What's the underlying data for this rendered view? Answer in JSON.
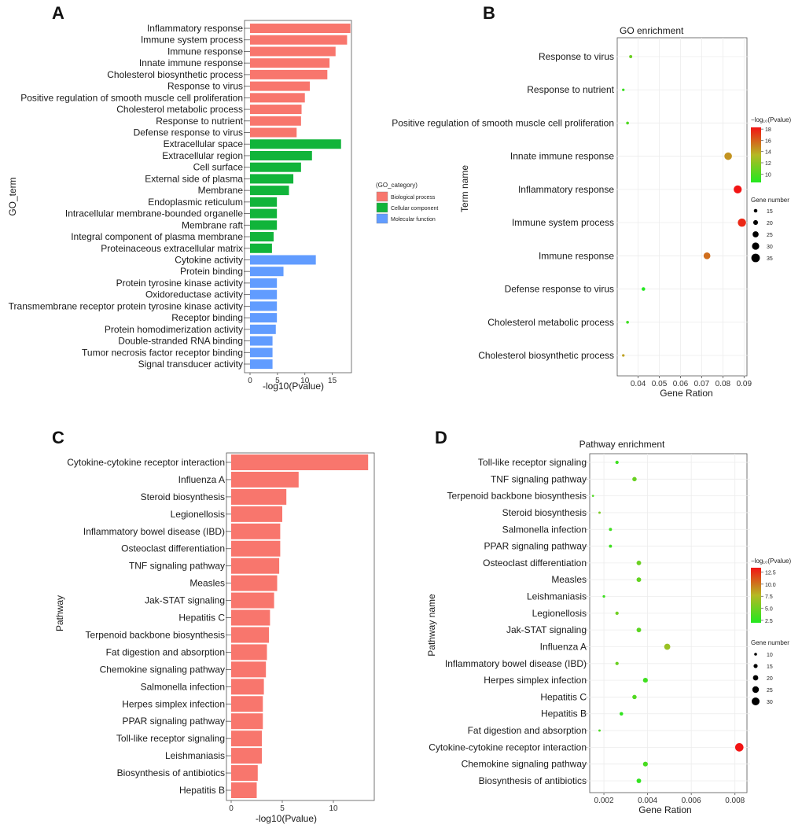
{
  "chart_data": [
    {
      "panel": "A",
      "type": "bar",
      "orientation": "horizontal",
      "ylabel": "GO_term",
      "xlabel": "-log10(Pvalue)",
      "xlim": [
        0,
        18.5
      ],
      "xticks": [
        0,
        5,
        10,
        15
      ],
      "legend_title": "(GO_category)",
      "legend_items": [
        {
          "label": "Biological process",
          "color": "#F8766D"
        },
        {
          "label": "Cellular component",
          "color": "#11B43A"
        },
        {
          "label": "Molecular function",
          "color": "#619CFF"
        }
      ],
      "categories": [
        "Inflammatory response",
        "Immune system process",
        "Immune response",
        "Innate immune response",
        "Cholesterol biosynthetic process",
        "Response to virus",
        "Positive regulation of smooth muscle cell proliferation",
        "Cholesterol metabolic process",
        "Response to nutrient",
        "Defense response to virus",
        "Extracellular space",
        "Extracellular region",
        "Cell surface",
        "External side of plasma",
        "Membrane",
        "Endoplasmic reticulum",
        "Intracellular membrane-bounded organelle",
        "Membrane raft",
        "Integral component of plasma membrane",
        "Proteinaceous extracellular matrix",
        "Cytokine activity",
        "Protein binding",
        "Protein tyrosine kinase activity",
        "Oxidoreductase activity",
        "Transmembrane receptor protein tyrosine kinase activity",
        "Receptor binding",
        "Protein homodimerization activity",
        "Double-stranded RNA binding",
        "Tumor necrosis factor receptor binding",
        "Signal transducer activity"
      ],
      "values": [
        18.3,
        17.7,
        15.6,
        14.5,
        14.1,
        10.9,
        10.0,
        9.4,
        9.3,
        8.5,
        16.6,
        11.3,
        9.3,
        7.9,
        7.1,
        4.9,
        4.9,
        4.9,
        4.3,
        4.0,
        12.0,
        6.1,
        4.9,
        4.9,
        4.9,
        4.9,
        4.7,
        4.1,
        4.1,
        4.1
      ],
      "group": [
        "Biological process",
        "Biological process",
        "Biological process",
        "Biological process",
        "Biological process",
        "Biological process",
        "Biological process",
        "Biological process",
        "Biological process",
        "Biological process",
        "Cellular component",
        "Cellular component",
        "Cellular component",
        "Cellular component",
        "Cellular component",
        "Cellular component",
        "Cellular component",
        "Cellular component",
        "Cellular component",
        "Cellular component",
        "Molecular function",
        "Molecular function",
        "Molecular function",
        "Molecular function",
        "Molecular function",
        "Molecular function",
        "Molecular function",
        "Molecular function",
        "Molecular function",
        "Molecular function"
      ]
    },
    {
      "panel": "B",
      "type": "scatter",
      "title": "GO enrichment",
      "xlabel": "Gene Ration",
      "ylabel": "Term name",
      "xlim": [
        0.0305,
        0.091
      ],
      "xticks": [
        0.04,
        0.05,
        0.06,
        0.07,
        0.08,
        0.09
      ],
      "xtick_labels": [
        "0.04",
        "0.05",
        "0.06",
        "0.07",
        "0.08",
        "0.09"
      ],
      "color_legend_title": "−log₁₀(Pvalue)",
      "color_range": [
        8.5,
        18.3
      ],
      "color_ticks": [
        18,
        16,
        14,
        12,
        10
      ],
      "size_legend_title": "Gene number",
      "size_ticks": [
        15,
        20,
        25,
        30,
        35
      ],
      "size_range": [
        10,
        40
      ],
      "categories": [
        "Response to virus",
        "Response to nutrient",
        "Positive regulation of smooth muscle cell proliferation",
        "Innate immune response",
        "Inflammatory response",
        "Immune system process",
        "Immune response",
        "Defense response to virus",
        "Cholesterol metabolic process",
        "Cholesterol biosynthetic process"
      ],
      "x": [
        0.0365,
        0.033,
        0.035,
        0.0825,
        0.087,
        0.089,
        0.0725,
        0.0425,
        0.035,
        0.033
      ],
      "neg_log10_p": [
        10.9,
        9.3,
        10.0,
        14.5,
        18.3,
        17.7,
        15.6,
        8.5,
        9.4,
        14.1
      ],
      "gene_number": [
        13,
        11,
        12,
        31,
        33,
        34,
        28,
        15,
        12,
        11
      ]
    },
    {
      "panel": "C",
      "type": "bar",
      "orientation": "horizontal",
      "ylabel": "Pathway",
      "xlabel": "-log10(Pvalue)",
      "xlim": [
        0,
        14
      ],
      "xticks": [
        0,
        5,
        10
      ],
      "bar_color": "#F8766D",
      "categories": [
        "Cytokine-cytokine receptor interaction",
        "Influenza A",
        "Steroid biosynthesis",
        "Legionellosis",
        "Inflammatory bowel disease (IBD)",
        "Osteoclast differentiation",
        "TNF signaling pathway",
        "Measles",
        "Jak-STAT signaling",
        "Hepatitis C",
        "Terpenoid backbone biosynthesis",
        "Fat digestion and absorption",
        "Chemokine signaling pathway",
        "Salmonella infection",
        "Herpes simplex infection",
        "PPAR signaling pathway",
        "Toll-like receptor signaling",
        "Leishmaniasis",
        "Biosynthesis of antibiotics",
        "Hepatitis B"
      ],
      "values": [
        13.4,
        6.6,
        5.4,
        5.0,
        4.8,
        4.8,
        4.7,
        4.5,
        4.2,
        3.8,
        3.7,
        3.5,
        3.4,
        3.2,
        3.1,
        3.1,
        3.0,
        3.0,
        2.6,
        2.5
      ]
    },
    {
      "panel": "D",
      "type": "scatter",
      "title": "Pathway enrichment",
      "xlabel": "Gene Ration",
      "ylabel": "Pathway name",
      "xlim": [
        0.00135,
        0.00855
      ],
      "xticks": [
        0.002,
        0.004,
        0.006,
        0.008
      ],
      "xtick_labels": [
        "0.002",
        "0.004",
        "0.006",
        "0.008"
      ],
      "color_legend_title": "−log₁₀(Pvalue)",
      "color_range": [
        2.0,
        13.4
      ],
      "color_ticks": [
        12.5,
        10.0,
        7.5,
        5.0,
        2.5
      ],
      "size_legend_title": "Gene number",
      "size_ticks": [
        10,
        15,
        20,
        25,
        30
      ],
      "size_range": [
        5,
        35
      ],
      "categories": [
        "Toll-like receptor signaling",
        "TNF signaling pathway",
        "Terpenoid backbone biosynthesis",
        "Steroid biosynthesis",
        "Salmonella infection",
        "PPAR signaling pathway",
        "Osteoclast differentiation",
        "Measles",
        "Leishmaniasis",
        "Legionellosis",
        "Jak-STAT signaling",
        "Influenza A",
        "Inflammatory bowel disease (IBD)",
        "Herpes simplex infection",
        "Hepatitis C",
        "Hepatitis B",
        "Fat digestion and absorption",
        "Cytokine-cytokine receptor interaction",
        "Chemokine signaling pathway",
        "Biosynthesis of antibiotics"
      ],
      "x": [
        0.0026,
        0.0034,
        0.0015,
        0.0018,
        0.0023,
        0.0023,
        0.0036,
        0.0036,
        0.002,
        0.0026,
        0.0036,
        0.0049,
        0.0026,
        0.0039,
        0.0034,
        0.0028,
        0.0018,
        0.0082,
        0.0039,
        0.0036
      ],
      "neg_log10_p": [
        3.0,
        4.7,
        3.7,
        5.4,
        3.2,
        3.1,
        4.8,
        4.5,
        3.0,
        5.0,
        4.2,
        6.6,
        4.8,
        3.1,
        3.8,
        2.5,
        3.5,
        13.4,
        3.4,
        2.6
      ],
      "gene_number": [
        12,
        16,
        7,
        8,
        11,
        11,
        17,
        17,
        9,
        12,
        17,
        23,
        12,
        18,
        16,
        13,
        8,
        32,
        18,
        17
      ]
    }
  ]
}
